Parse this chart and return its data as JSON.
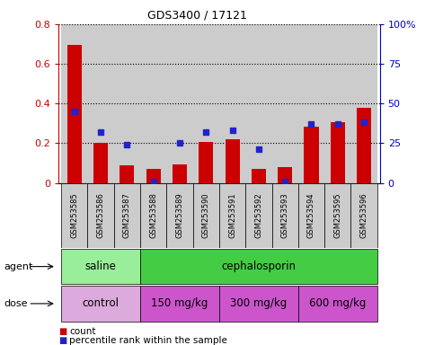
{
  "title": "GDS3400 / 17121",
  "samples": [
    "GSM253585",
    "GSM253586",
    "GSM253587",
    "GSM253588",
    "GSM253589",
    "GSM253590",
    "GSM253591",
    "GSM253592",
    "GSM253593",
    "GSM253594",
    "GSM253595",
    "GSM253596"
  ],
  "count_values": [
    0.695,
    0.2,
    0.09,
    0.07,
    0.095,
    0.205,
    0.22,
    0.07,
    0.08,
    0.285,
    0.305,
    0.38
  ],
  "percentile_values": [
    45,
    32,
    24,
    1,
    25,
    32,
    33,
    21,
    1,
    37,
    37,
    38
  ],
  "ylim_left": [
    0,
    0.8
  ],
  "ylim_right": [
    0,
    100
  ],
  "yticks_left": [
    0,
    0.2,
    0.4,
    0.6,
    0.8
  ],
  "yticks_right": [
    0,
    25,
    50,
    75,
    100
  ],
  "ytick_labels_right": [
    "0",
    "25",
    "50",
    "75",
    "100%"
  ],
  "bar_color": "#cc0000",
  "dot_color": "#2222cc",
  "bg_color": "#cccccc",
  "left_axis_color": "#cc0000",
  "right_axis_color": "#0000cc",
  "groups_agent": [
    {
      "label": "saline",
      "xstart": -0.5,
      "xend": 2.5,
      "color": "#aaeea a"
    },
    {
      "label": "cephalosporin",
      "xstart": 2.5,
      "xend": 11.5,
      "color": "#44cc44"
    }
  ],
  "groups_dose": [
    {
      "label": "control",
      "xstart": -0.5,
      "xend": 2.5,
      "color": "#ddaadd"
    },
    {
      "label": "150 mg/kg",
      "xstart": 2.5,
      "xend": 5.5,
      "color": "#dd66dd"
    },
    {
      "label": "300 mg/kg",
      "xstart": 5.5,
      "xend": 8.5,
      "color": "#dd66dd"
    },
    {
      "label": "600 mg/kg",
      "xstart": 8.5,
      "xend": 11.5,
      "color": "#dd66dd"
    }
  ],
  "agent_saline_color": "#aaeea a",
  "agent_ceph_color": "#44dd44",
  "dose_control_color": "#ddaadd",
  "dose_other_color": "#dd55dd"
}
